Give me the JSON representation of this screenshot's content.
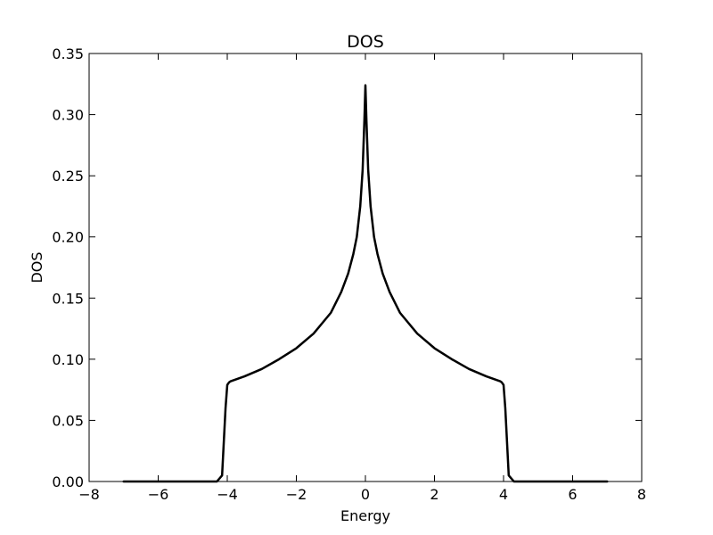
{
  "chart_data": {
    "type": "line",
    "title": "DOS",
    "xlabel": "Energy",
    "ylabel": "DOS",
    "xlim": [
      -8,
      8
    ],
    "ylim": [
      0,
      0.35
    ],
    "xticks": [
      -8,
      -6,
      -4,
      -2,
      0,
      2,
      4,
      6,
      8
    ],
    "xtick_labels": [
      "−8",
      "−6",
      "−4",
      "−2",
      "0",
      "2",
      "4",
      "6",
      "8"
    ],
    "yticks": [
      0,
      0.05,
      0.1,
      0.15,
      0.2,
      0.25,
      0.3,
      0.35
    ],
    "ytick_labels": [
      "0.00",
      "0.05",
      "0.10",
      "0.15",
      "0.20",
      "0.25",
      "0.30",
      "0.35"
    ],
    "grid": false,
    "line_color": "#000000",
    "series": [
      {
        "x": [
          -7,
          -4.3,
          -4.15,
          -4.05,
          -4.0,
          -3.95,
          -3.9,
          -3.5,
          -3.0,
          -2.5,
          -2.0,
          -1.5,
          -1.0,
          -0.7,
          -0.5,
          -0.35,
          -0.25,
          -0.15,
          -0.08,
          -0.03,
          0.0,
          0.03,
          0.08,
          0.15,
          0.25,
          0.35,
          0.5,
          0.7,
          1.0,
          1.5,
          2.0,
          2.5,
          3.0,
          3.5,
          3.9,
          3.95,
          4.0,
          4.05,
          4.15,
          4.3,
          7
        ],
        "y": [
          0,
          0,
          0.005,
          0.06,
          0.079,
          0.081,
          0.082,
          0.086,
          0.092,
          0.1,
          0.109,
          0.121,
          0.138,
          0.155,
          0.17,
          0.186,
          0.2,
          0.225,
          0.255,
          0.295,
          0.324,
          0.295,
          0.255,
          0.225,
          0.2,
          0.186,
          0.17,
          0.155,
          0.138,
          0.121,
          0.109,
          0.1,
          0.092,
          0.086,
          0.082,
          0.081,
          0.079,
          0.06,
          0.005,
          0,
          0
        ]
      }
    ]
  }
}
